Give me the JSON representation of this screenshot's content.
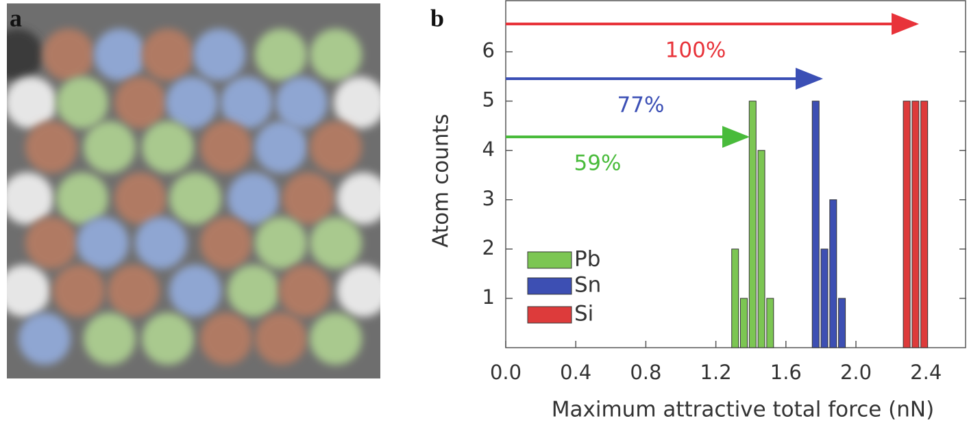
{
  "panel_labels": [
    "a",
    "b"
  ],
  "chart_data": {
    "type": "bar",
    "xlabel": "Maximum attractive total force (nN)",
    "ylabel": "Atom counts",
    "xlim": [
      0,
      2.63
    ],
    "ylim": [
      0,
      7.05
    ],
    "xticks": [
      {
        "value": 0,
        "label": "0.0"
      },
      0.4,
      0.8,
      1.2,
      1.6,
      {
        "value": 2,
        "label": "2.0"
      },
      2.4
    ],
    "yticks": [
      1,
      2,
      3,
      4,
      5,
      6
    ],
    "legend": "lower left",
    "series": [
      {
        "name": "Pb",
        "color": "#7cc653",
        "annotation": "59%",
        "arrow_color": "#49bb3b",
        "x": [
          1.31,
          1.36,
          1.41,
          1.46,
          1.51
        ],
        "values": [
          2,
          1,
          5,
          4,
          1
        ]
      },
      {
        "name": "Sn",
        "color": "#3d4fb3",
        "annotation": "77%",
        "arrow_color": "#3b4fb5",
        "x": [
          1.77,
          1.82,
          1.87,
          1.92
        ],
        "values": [
          5,
          2,
          3,
          1
        ]
      },
      {
        "name": "Si",
        "color": "#dd3b3b",
        "annotation": "100%",
        "arrow_color": "#e8333a",
        "x": [
          2.29,
          2.34,
          2.39
        ],
        "values": [
          5,
          5,
          5
        ]
      }
    ]
  }
}
